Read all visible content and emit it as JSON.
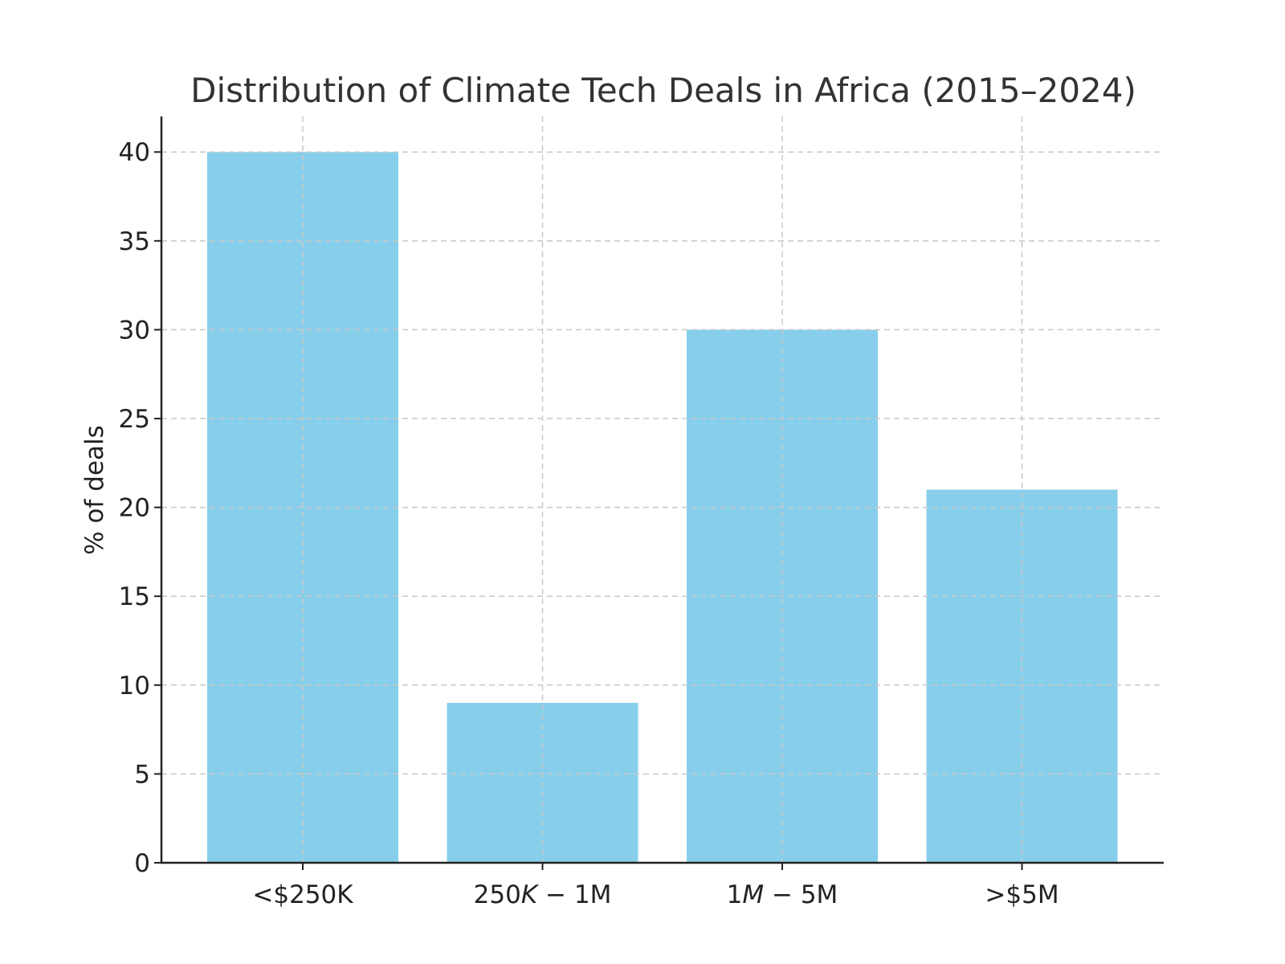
{
  "chart_data": {
    "type": "bar",
    "title": "Distribution of Climate Tech Deals in Africa (2015–2024)",
    "categories": [
      {
        "parts": [
          {
            "t": "<$250K",
            "i": false
          }
        ]
      },
      {
        "parts": [
          {
            "t": "250",
            "i": false
          },
          {
            "t": "K",
            "i": true
          },
          {
            "t": " − 1M",
            "i": false
          }
        ]
      },
      {
        "parts": [
          {
            "t": "1",
            "i": false
          },
          {
            "t": "M",
            "i": true
          },
          {
            "t": " − 5M",
            "i": false
          }
        ]
      },
      {
        "parts": [
          {
            "t": ">$5M",
            "i": false
          }
        ]
      }
    ],
    "values": [
      40,
      9,
      30,
      21
    ],
    "xlabel": "",
    "ylabel": "% of deals",
    "ylim": [
      0,
      42
    ],
    "yticks": [
      0,
      5,
      10,
      15,
      20,
      25,
      30,
      35,
      40
    ],
    "grid": true,
    "bar_color": "#87CEEB"
  }
}
